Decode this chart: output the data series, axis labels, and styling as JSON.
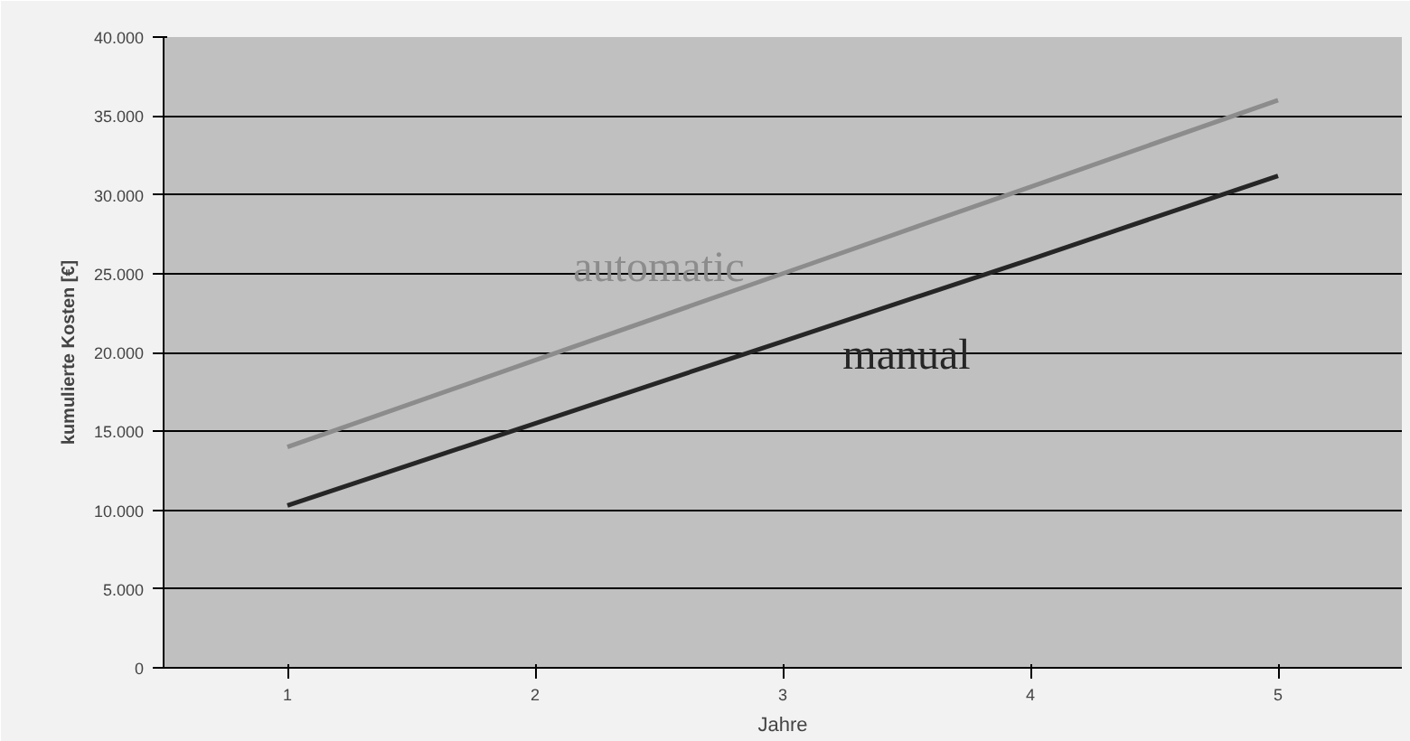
{
  "chart_data": {
    "type": "line",
    "xlabel": "Jahre",
    "ylabel": "kumulierte Kosten [€]",
    "categories": [
      "1",
      "2",
      "3",
      "4",
      "5"
    ],
    "series": [
      {
        "name": "automatic",
        "color": "#8c8c8c",
        "values": [
          14000,
          19500,
          25000,
          30500,
          36000
        ]
      },
      {
        "name": "manual",
        "color": "#262626",
        "values": [
          10300,
          15500,
          20700,
          25900,
          31200
        ]
      }
    ],
    "ylim": [
      0,
      40000
    ],
    "yticks": [
      {
        "value": 0,
        "label": "0"
      },
      {
        "value": 5000,
        "label": "5.000"
      },
      {
        "value": 10000,
        "label": "10.000"
      },
      {
        "value": 15000,
        "label": "15.000"
      },
      {
        "value": 20000,
        "label": "20.000"
      },
      {
        "value": 25000,
        "label": "25.000"
      },
      {
        "value": 30000,
        "label": "30.000"
      },
      {
        "value": 35000,
        "label": "35.000"
      },
      {
        "value": 40000,
        "label": "40.000"
      }
    ],
    "grid": "y",
    "legend": false,
    "marker": "none",
    "line_style": "solid"
  }
}
